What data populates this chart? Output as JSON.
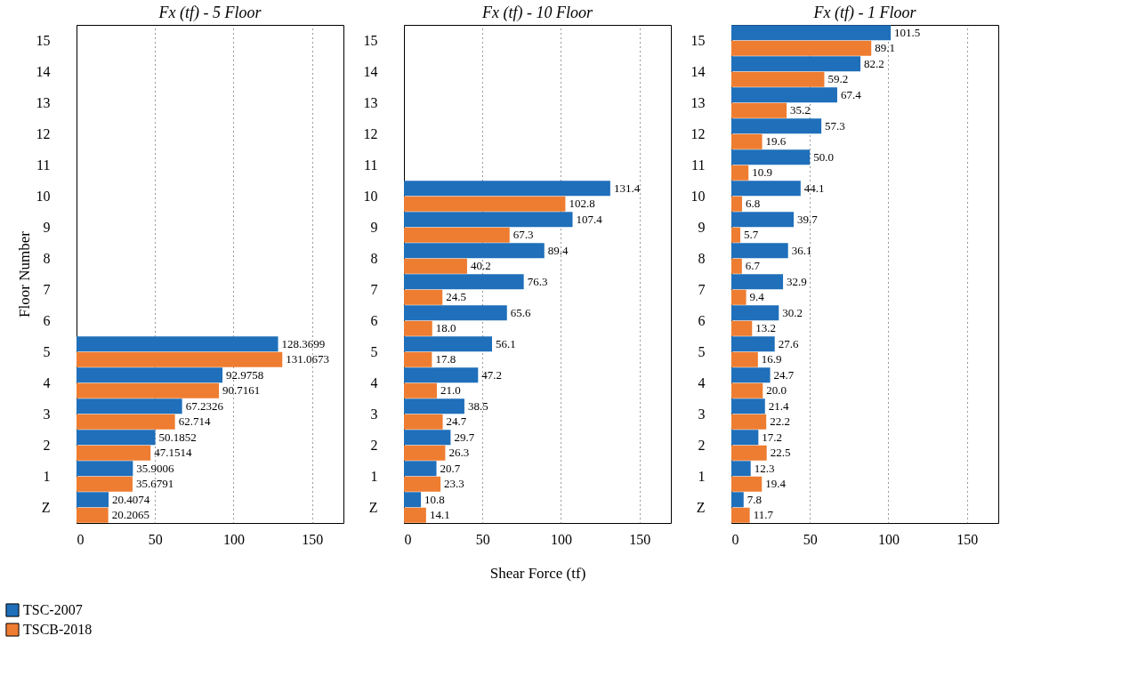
{
  "chart_data": [
    {
      "type": "bar",
      "orientation": "horizontal",
      "title": "Fx (tf) - 5 Floor",
      "ylabel": "Floor Number",
      "categories": [
        "15",
        "14",
        "13",
        "12",
        "11",
        "10",
        "9",
        "8",
        "7",
        "6",
        "5",
        "4",
        "3",
        "2",
        "1",
        "Z"
      ],
      "series": [
        {
          "name": "TSC-2007",
          "color": "#1f6fba",
          "values": [
            null,
            null,
            null,
            null,
            null,
            null,
            null,
            null,
            null,
            null,
            128.3699,
            92.9758,
            67.2326,
            50.1852,
            35.9006,
            20.4074
          ],
          "value_labels": [
            null,
            null,
            null,
            null,
            null,
            null,
            null,
            null,
            null,
            null,
            "128.3699",
            "92.9758",
            "67.2326",
            "50.1852",
            "35.9006",
            "20.4074"
          ]
        },
        {
          "name": "TSCB-2018",
          "color": "#ee7d31",
          "values": [
            null,
            null,
            null,
            null,
            null,
            null,
            null,
            null,
            null,
            null,
            131.0673,
            90.7161,
            62.714,
            47.1514,
            35.6791,
            20.2065
          ],
          "value_labels": [
            null,
            null,
            null,
            null,
            null,
            null,
            null,
            null,
            null,
            null,
            "131.0673",
            "90.7161",
            "62.714",
            "47.1514",
            "35.6791",
            "20.2065"
          ]
        }
      ],
      "xlim": [
        0,
        170
      ],
      "xticks": [
        0,
        50,
        100,
        150
      ],
      "grid": "x",
      "legend": "bottom left"
    },
    {
      "type": "bar",
      "orientation": "horizontal",
      "title": "Fx (tf) - 10 Floor",
      "xlabel": "Shear Force (tf)",
      "categories": [
        "15",
        "14",
        "13",
        "12",
        "11",
        "10",
        "9",
        "8",
        "7",
        "6",
        "5",
        "4",
        "3",
        "2",
        "1",
        "Z"
      ],
      "series": [
        {
          "color": "#1f6fba",
          "values": [
            null,
            null,
            null,
            null,
            null,
            131.4,
            107.4,
            89.4,
            76.3,
            65.6,
            56.1,
            47.2,
            38.5,
            29.7,
            20.7,
            10.8
          ],
          "value_labels": [
            null,
            null,
            null,
            null,
            null,
            "131.4",
            "107.4",
            "89.4",
            "76.3",
            "65.6",
            "56.1",
            "47.2",
            "38.5",
            "29.7",
            "20.7",
            "10.8"
          ]
        },
        {
          "color": "#ee7d31",
          "values": [
            null,
            null,
            null,
            null,
            null,
            102.8,
            67.3,
            40.2,
            24.5,
            18.0,
            17.8,
            21.0,
            24.7,
            26.3,
            23.3,
            14.1
          ],
          "value_labels": [
            null,
            null,
            null,
            null,
            null,
            "102.8",
            "67.3",
            "40.2",
            "24.5",
            "18.0",
            "17.8",
            "21.0",
            "24.7",
            "26.3",
            "23.3",
            "14.1"
          ]
        }
      ],
      "xlim": [
        0,
        170
      ],
      "xticks": [
        0,
        50,
        100,
        150
      ],
      "grid": "x"
    },
    {
      "type": "bar",
      "orientation": "horizontal",
      "title": "Fx (tf) - 1 Floor",
      "categories": [
        "15",
        "14",
        "13",
        "12",
        "11",
        "10",
        "9",
        "8",
        "7",
        "6",
        "5",
        "4",
        "3",
        "2",
        "1",
        "Z"
      ],
      "series": [
        {
          "color": "#1f6fba",
          "values": [
            101.5,
            82.2,
            67.4,
            57.3,
            50.0,
            44.1,
            39.7,
            36.1,
            32.9,
            30.2,
            27.6,
            24.7,
            21.4,
            17.2,
            12.3,
            7.8
          ],
          "value_labels": [
            "101.5",
            "82.2",
            "67.4",
            "57.3",
            "50.0",
            "44.1",
            "39.7",
            "36.1",
            "32.9",
            "30.2",
            "27.6",
            "24.7",
            "21.4",
            "17.2",
            "12.3",
            "7.8"
          ]
        },
        {
          "color": "#ee7d31",
          "values": [
            89.1,
            59.2,
            35.2,
            19.6,
            10.9,
            6.8,
            5.7,
            6.7,
            9.4,
            13.2,
            16.9,
            20.0,
            22.2,
            22.5,
            19.4,
            11.7
          ],
          "value_labels": [
            "89.1",
            "59.2",
            "35.2",
            "19.6",
            "10.9",
            "6.8",
            "5.7",
            "6.7",
            "9.4",
            "13.2",
            "16.9",
            "20.0",
            "22.2",
            "22.5",
            "19.4",
            "11.7"
          ]
        }
      ],
      "xlim": [
        0,
        170
      ],
      "xticks": [
        0,
        50,
        100,
        150
      ],
      "grid": "x"
    }
  ]
}
